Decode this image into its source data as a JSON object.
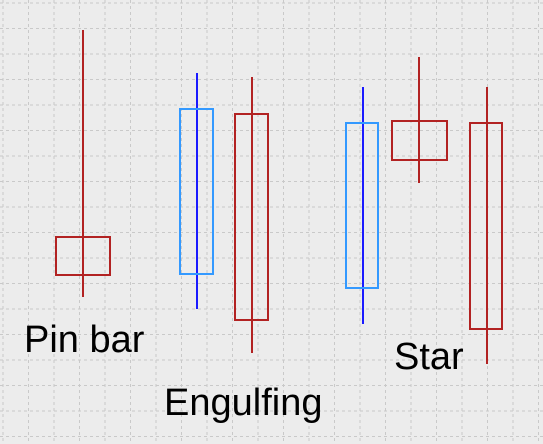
{
  "labels": {
    "pin_bar": "Pin bar",
    "engulfing": "Engulfing",
    "star": "Star"
  },
  "colors": {
    "background": "#ececec",
    "grid": "#c9c9c9",
    "bearish": "#b22222",
    "bullish_body": "#3399ff",
    "bullish_wick": "#1a1aff",
    "text": "#000000"
  },
  "candles": [
    {
      "pattern": "pin-bar",
      "direction": "bearish"
    },
    {
      "pattern": "engulfing",
      "direction": "bullish"
    },
    {
      "pattern": "engulfing",
      "direction": "bearish"
    },
    {
      "pattern": "star",
      "direction": "bullish"
    },
    {
      "pattern": "star",
      "direction": "bearish"
    },
    {
      "pattern": "star",
      "direction": "bearish"
    }
  ]
}
